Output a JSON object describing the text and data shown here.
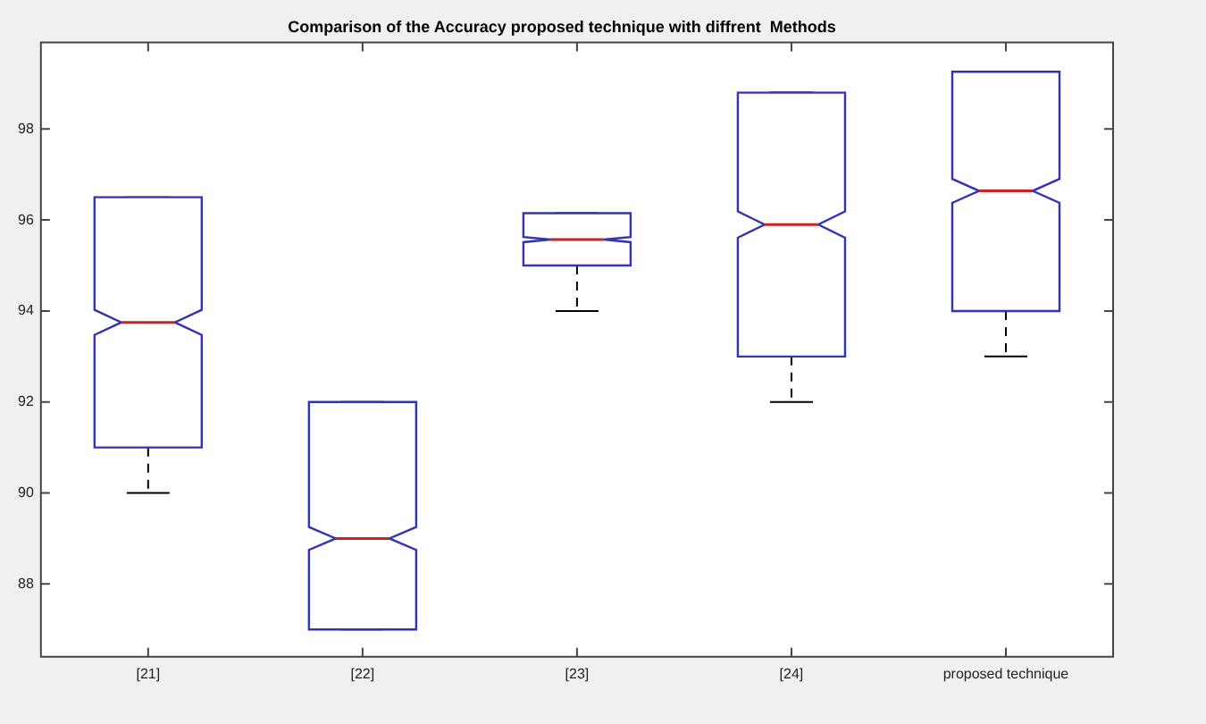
{
  "chart_data": {
    "type": "box",
    "title": "Comparison of the Accuracy proposed technique with diffrent  Methods",
    "categories": [
      "[21]",
      "[22]",
      "[23]",
      "[24]",
      "proposed technique"
    ],
    "series": [
      {
        "color": "#3333b3",
        "boxes": [
          {
            "low": 90,
            "q1": 91,
            "median": 93.75,
            "q3": 96.5,
            "high": 96.5
          },
          {
            "low": 87,
            "q1": 87,
            "median": 89,
            "q3": 92,
            "high": 92
          },
          {
            "low": 94,
            "q1": 95,
            "median": 95.57,
            "q3": 96.15,
            "high": 96.15
          },
          {
            "low": 92,
            "q1": 93,
            "median": 95.9,
            "q3": 98.8,
            "high": 98.8
          },
          {
            "low": 93,
            "q1": 94,
            "median": 96.64,
            "q3": 99.26,
            "high": 99.26
          }
        ]
      }
    ],
    "ylim": [
      86.4,
      99.9
    ],
    "yticks": [
      88,
      90,
      92,
      94,
      96,
      98
    ],
    "grid": false
  }
}
